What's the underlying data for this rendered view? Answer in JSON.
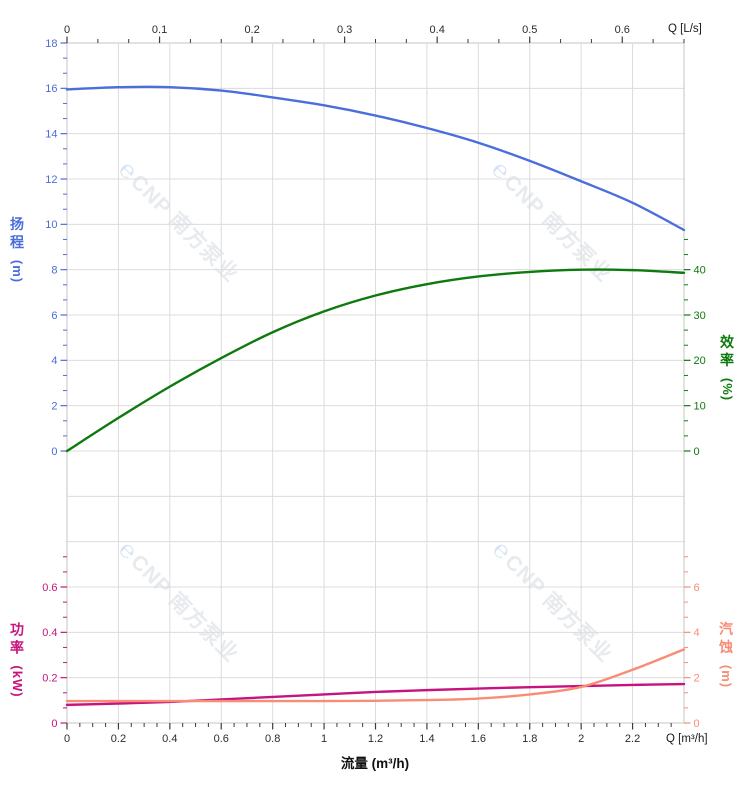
{
  "watermark": {
    "logo": "℮",
    "text": "CNP 南方泵业"
  },
  "axes": {
    "x_top": {
      "unit_label": "Q [L/s]",
      "ticks": [
        "0",
        "0.1",
        "0.2",
        "0.3",
        "0.4",
        "0.5",
        "0.6"
      ],
      "min": 0,
      "max": 0.6667
    },
    "x_bottom": {
      "axis_label": "流量 (m³/h)",
      "unit_label": "Q [m³/h]",
      "ticks": [
        "0",
        "0.2",
        "0.4",
        "0.6",
        "0.8",
        "1",
        "1.2",
        "1.4",
        "1.6",
        "1.8",
        "2",
        "2.2"
      ],
      "min": 0,
      "max": 2.4
    },
    "head": {
      "title": "扬程",
      "unit": "(m)",
      "color": "#4a6edb",
      "ticks": [
        "18",
        "16",
        "14",
        "12",
        "10",
        "8",
        "6",
        "4",
        "2",
        "0"
      ],
      "min": 0,
      "max": 18
    },
    "efficiency": {
      "title": "效率",
      "unit": "(%)",
      "color": "#0e7a0e",
      "ticks": [
        "40",
        "30",
        "20",
        "10",
        "0"
      ],
      "min": 0,
      "max": 40
    },
    "power": {
      "title": "功率",
      "unit": "(kW)",
      "color": "#c6137e",
      "ticks": [
        "0.6",
        "0.4",
        "0.2",
        "0"
      ],
      "min": 0,
      "max": 0.6
    },
    "npsh": {
      "title": "汽蚀",
      "unit": "(m)",
      "color": "#f88c74",
      "ticks": [
        "6",
        "4",
        "2",
        "0"
      ],
      "min": 0,
      "max": 6
    }
  },
  "chart_data": [
    {
      "type": "line",
      "title": "pump head and efficiency curves",
      "xlabel": "流量 (m³/h)",
      "x_range": [
        0,
        2.4
      ],
      "x": [
        0,
        0.2,
        0.4,
        0.6,
        0.8,
        1.0,
        1.2,
        1.4,
        1.6,
        1.8,
        2.0,
        2.2,
        2.4
      ],
      "series": [
        {
          "name": "扬程",
          "axis": "head",
          "unit": "m",
          "color": "#4a6edb",
          "axis_range": [
            0,
            18
          ],
          "values": [
            15.95,
            16.05,
            16.05,
            15.9,
            15.6,
            15.25,
            14.8,
            14.25,
            13.6,
            12.8,
            11.9,
            10.95,
            9.75
          ]
        },
        {
          "name": "效率",
          "axis": "efficiency",
          "unit": "%",
          "color": "#0e7a0e",
          "axis_range": [
            0,
            40
          ],
          "values": [
            0,
            7.3,
            14.2,
            20.5,
            26.2,
            30.8,
            34.3,
            36.8,
            38.5,
            39.5,
            40,
            39.9,
            39.3
          ]
        }
      ],
      "grid": true,
      "legend": false
    },
    {
      "type": "line",
      "title": "pump power and NPSH curves",
      "xlabel": "流量 (m³/h)",
      "x_range": [
        0,
        2.4
      ],
      "x": [
        0,
        0.2,
        0.4,
        0.6,
        0.8,
        1.0,
        1.2,
        1.4,
        1.6,
        1.8,
        2.0,
        2.2,
        2.4
      ],
      "series": [
        {
          "name": "功率",
          "axis": "power",
          "unit": "kW",
          "color": "#c6137e",
          "axis_range": [
            0,
            0.6
          ],
          "values": [
            0.08,
            0.086,
            0.093,
            0.104,
            0.115,
            0.126,
            0.137,
            0.145,
            0.152,
            0.158,
            0.163,
            0.168,
            0.172
          ]
        },
        {
          "name": "汽蚀",
          "axis": "npsh",
          "unit": "m",
          "color": "#f88c74",
          "axis_range": [
            0,
            6
          ],
          "values": [
            0.97,
            0.97,
            0.97,
            0.97,
            0.97,
            0.97,
            0.98,
            1.01,
            1.08,
            1.26,
            1.59,
            2.35,
            3.25
          ]
        }
      ],
      "grid": true,
      "legend": false
    }
  ]
}
